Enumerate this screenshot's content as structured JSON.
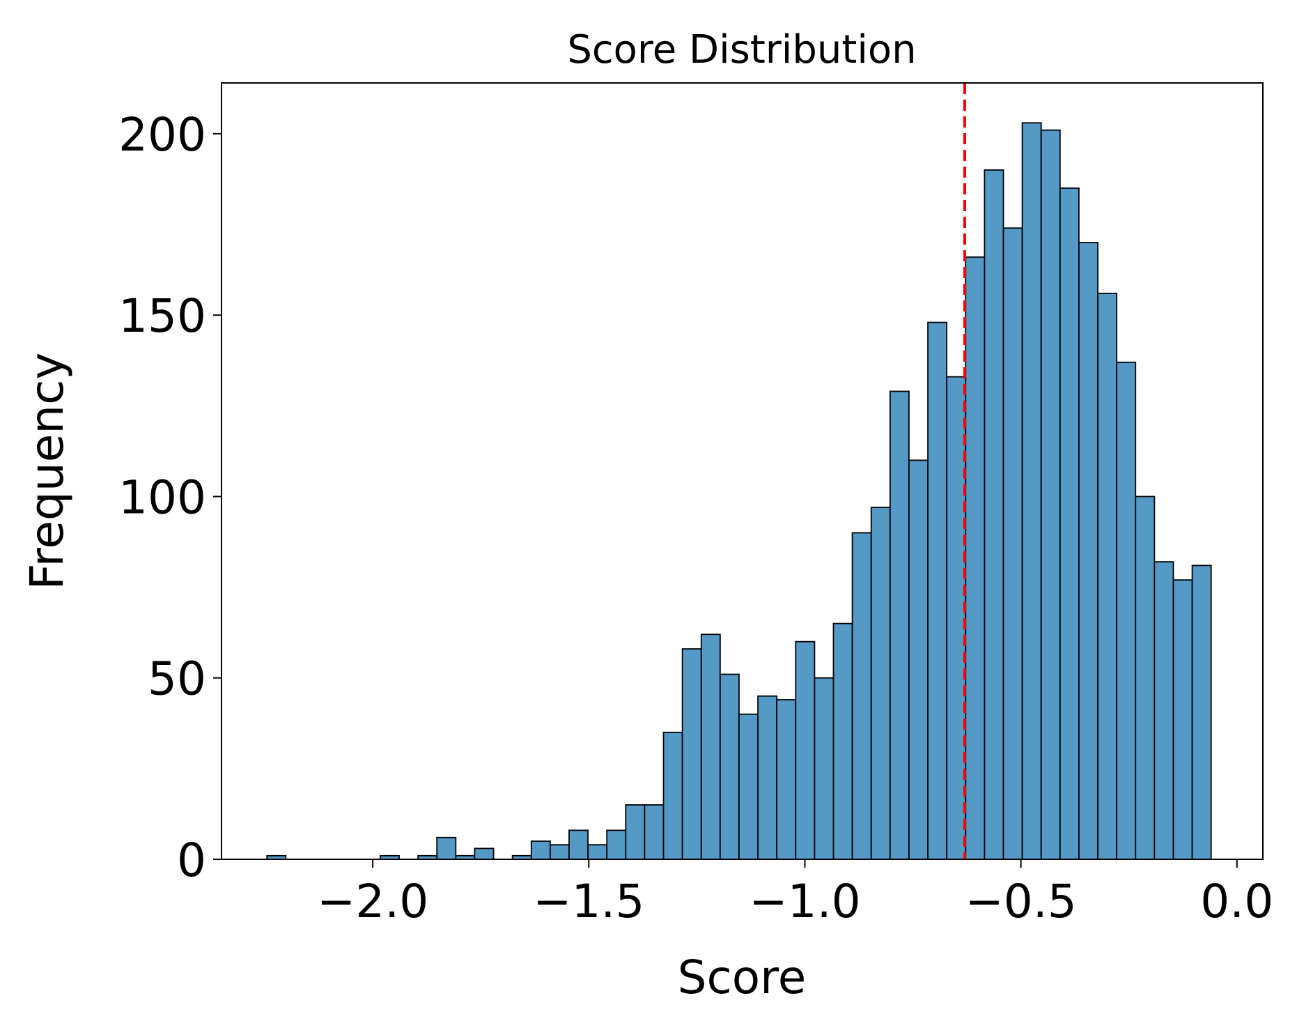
{
  "chart_data": {
    "type": "histogram",
    "title": "Score Distribution",
    "xlabel": "Score",
    "ylabel": "Frequency",
    "xlim": [
      -2.35,
      0.06
    ],
    "ylim": [
      0,
      214
    ],
    "bin_start": -2.2448,
    "bin_width": 0.0437,
    "values": [
      1,
      0,
      0,
      0,
      0,
      0,
      1,
      0,
      1,
      6,
      1,
      3,
      0,
      1,
      5,
      4,
      8,
      4,
      8,
      15,
      15,
      35,
      58,
      62,
      51,
      40,
      45,
      44,
      60,
      50,
      65,
      90,
      97,
      129,
      110,
      148,
      133,
      166,
      190,
      174,
      203,
      201,
      185,
      170,
      156,
      137,
      100,
      82,
      77,
      81
    ],
    "x_ticks": [
      {
        "value": -2.0,
        "label": "−2.0"
      },
      {
        "value": -1.5,
        "label": "−1.5"
      },
      {
        "value": -1.0,
        "label": "−1.0"
      },
      {
        "value": -0.5,
        "label": "−0.5"
      },
      {
        "value": 0.0,
        "label": "0.0"
      }
    ],
    "y_ticks": [
      {
        "value": 0,
        "label": "0"
      },
      {
        "value": 50,
        "label": "50"
      },
      {
        "value": 100,
        "label": "100"
      },
      {
        "value": 150,
        "label": "150"
      },
      {
        "value": 200,
        "label": "200"
      }
    ],
    "reference_line": {
      "x": -0.63,
      "style": "dashed",
      "color": "#ff0000"
    },
    "bar_color": "#5599c7",
    "edge_color": "#000000",
    "grid": false,
    "legend": "none"
  }
}
